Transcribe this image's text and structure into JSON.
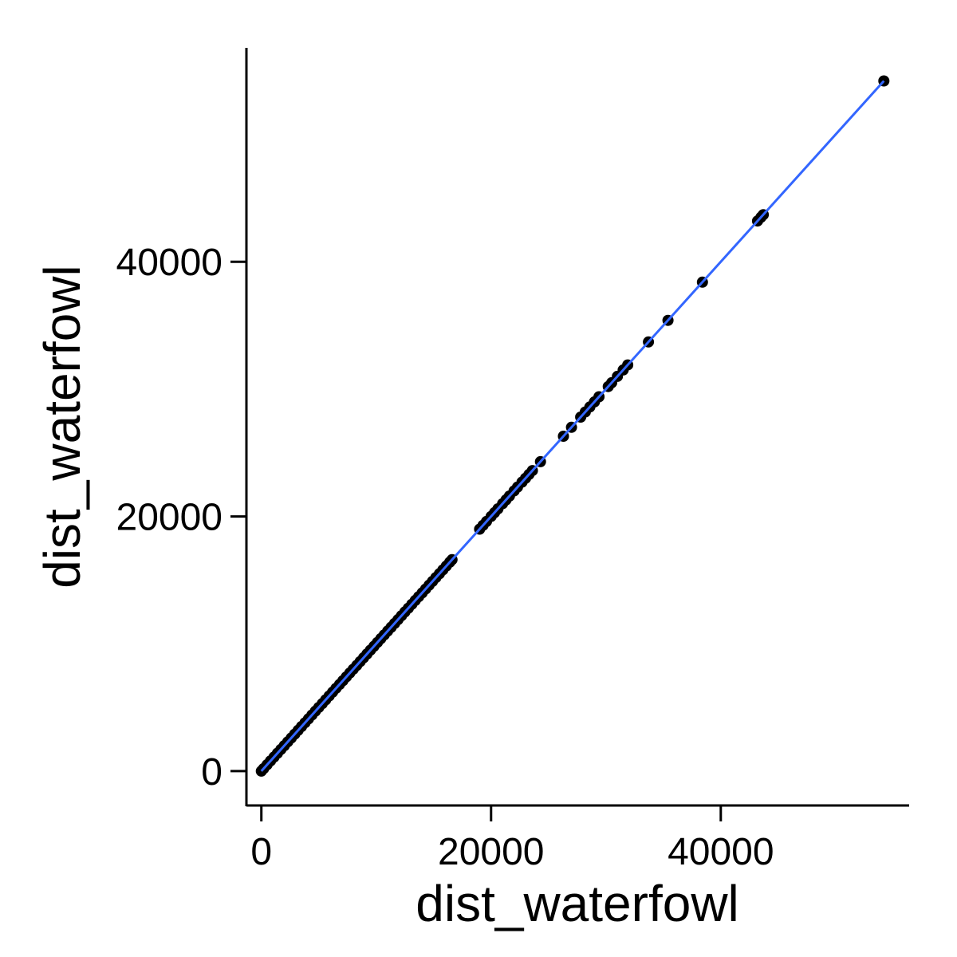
{
  "chart_data": {
    "type": "scatter",
    "xlabel": "dist_waterfowl",
    "ylabel": "dist_waterfowl",
    "xlim": [
      -1300,
      56400
    ],
    "ylim": [
      -2700,
      56800
    ],
    "x_ticks": [
      0,
      20000,
      40000
    ],
    "y_ticks": [
      0,
      20000,
      40000
    ],
    "x_tick_labels": [
      "0",
      "20000",
      "40000"
    ],
    "y_tick_labels": [
      "0",
      "20000",
      "40000"
    ],
    "grid": false,
    "legend": "none",
    "colors": {
      "points": "#000000",
      "fit_line": "#3366FF",
      "axes": "#000000"
    },
    "series": [
      {
        "points": [
          [
            0,
            0
          ],
          [
            200,
            200
          ],
          [
            500,
            500
          ],
          [
            800,
            800
          ],
          [
            1100,
            1100
          ],
          [
            1400,
            1400
          ],
          [
            1700,
            1700
          ],
          [
            2000,
            2000
          ],
          [
            2300,
            2300
          ],
          [
            2600,
            2600
          ],
          [
            2900,
            2900
          ],
          [
            3200,
            3200
          ],
          [
            3500,
            3500
          ],
          [
            3800,
            3800
          ],
          [
            4100,
            4100
          ],
          [
            4400,
            4400
          ],
          [
            4700,
            4700
          ],
          [
            5000,
            5000
          ],
          [
            5300,
            5300
          ],
          [
            5600,
            5600
          ],
          [
            5900,
            5900
          ],
          [
            6200,
            6200
          ],
          [
            6500,
            6500
          ],
          [
            6800,
            6800
          ],
          [
            7100,
            7100
          ],
          [
            7400,
            7400
          ],
          [
            7700,
            7700
          ],
          [
            8000,
            8000
          ],
          [
            8300,
            8300
          ],
          [
            8600,
            8600
          ],
          [
            8900,
            8900
          ],
          [
            9200,
            9200
          ],
          [
            9500,
            9500
          ],
          [
            9800,
            9800
          ],
          [
            10100,
            10100
          ],
          [
            10400,
            10400
          ],
          [
            10700,
            10700
          ],
          [
            11000,
            11000
          ],
          [
            11300,
            11300
          ],
          [
            11600,
            11600
          ],
          [
            11900,
            11900
          ],
          [
            12200,
            12200
          ],
          [
            12500,
            12500
          ],
          [
            12800,
            12800
          ],
          [
            13100,
            13100
          ],
          [
            13400,
            13400
          ],
          [
            13700,
            13700
          ],
          [
            14000,
            14000
          ],
          [
            14300,
            14300
          ],
          [
            14600,
            14600
          ],
          [
            14900,
            14900
          ],
          [
            15200,
            15200
          ],
          [
            15500,
            15500
          ],
          [
            15800,
            15800
          ],
          [
            16100,
            16100
          ],
          [
            16400,
            16400
          ],
          [
            16600,
            16600
          ],
          [
            19000,
            19000
          ],
          [
            19300,
            19300
          ],
          [
            19600,
            19600
          ],
          [
            20000,
            20000
          ],
          [
            20300,
            20300
          ],
          [
            20600,
            20600
          ],
          [
            21000,
            21000
          ],
          [
            21300,
            21300
          ],
          [
            21600,
            21600
          ],
          [
            22000,
            22000
          ],
          [
            22300,
            22300
          ],
          [
            22700,
            22700
          ],
          [
            23000,
            23000
          ],
          [
            23300,
            23300
          ],
          [
            23600,
            23600
          ],
          [
            24300,
            24300
          ],
          [
            26300,
            26300
          ],
          [
            27000,
            27000
          ],
          [
            27800,
            27800
          ],
          [
            28200,
            28200
          ],
          [
            28600,
            28600
          ],
          [
            29000,
            29000
          ],
          [
            29400,
            29400
          ],
          [
            30200,
            30200
          ],
          [
            30500,
            30500
          ],
          [
            31000,
            31000
          ],
          [
            31500,
            31500
          ],
          [
            31900,
            31900
          ],
          [
            33700,
            33700
          ],
          [
            35400,
            35400
          ],
          [
            38400,
            38400
          ],
          [
            43200,
            43200
          ],
          [
            43500,
            43500
          ],
          [
            43700,
            43700
          ],
          [
            54200,
            54200
          ]
        ]
      }
    ],
    "fit_line": {
      "x": [
        0,
        54200
      ],
      "y": [
        0,
        54200
      ]
    }
  }
}
